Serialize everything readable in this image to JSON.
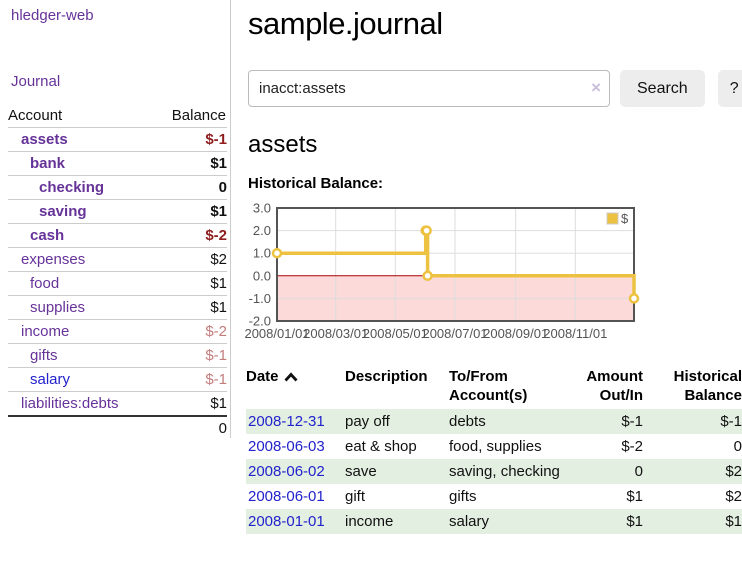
{
  "app": {
    "brand": "hledger-web",
    "nav_journal": "Journal"
  },
  "sidebar": {
    "col_account": "Account",
    "col_balance": "Balance",
    "accounts": [
      {
        "name": "assets",
        "depth": 1,
        "balance": "$-1",
        "strong": true,
        "balance_tone": "neg"
      },
      {
        "name": "bank",
        "depth": 2,
        "balance": "$1",
        "strong": true,
        "balance_tone": null
      },
      {
        "name": "checking",
        "depth": 3,
        "balance": "0",
        "strong": true,
        "balance_tone": null
      },
      {
        "name": "saving",
        "depth": 3,
        "balance": "$1",
        "strong": true,
        "balance_tone": null
      },
      {
        "name": "cash",
        "depth": 2,
        "balance": "$-2",
        "strong": true,
        "balance_tone": "neg"
      },
      {
        "name": "expenses",
        "depth": 1,
        "balance": "$2",
        "strong": false,
        "balance_tone": null
      },
      {
        "name": "food",
        "depth": 2,
        "balance": "$1",
        "strong": false,
        "balance_tone": null
      },
      {
        "name": "supplies",
        "depth": 2,
        "balance": "$1",
        "strong": false,
        "balance_tone": null
      },
      {
        "name": "income",
        "depth": 1,
        "balance": "$-2",
        "strong": false,
        "balance_tone": "neg-faded"
      },
      {
        "name": "gifts",
        "depth": 2,
        "balance": "$-1",
        "strong": false,
        "balance_tone": "neg-faded"
      },
      {
        "name": "salary",
        "depth": 2,
        "balance": "$-1",
        "strong": false,
        "balance_tone": "neg-faded",
        "link_tone": "blue"
      },
      {
        "name": "liabilities:debts",
        "depth": 1,
        "balance": "$1",
        "strong": false,
        "balance_tone": null
      }
    ],
    "total": "0"
  },
  "header": {
    "title": "sample.journal"
  },
  "search": {
    "query": "inacct:assets",
    "clear_icon": "×",
    "button_label": "Search",
    "help_label": "?"
  },
  "account_page": {
    "heading": "assets"
  },
  "chart_data": {
    "type": "line",
    "step": true,
    "title": "Historical Balance:",
    "series": [
      {
        "name": "$",
        "color": "#edc240",
        "points": [
          {
            "date": "2008-01-01",
            "day": 0,
            "value": 1
          },
          {
            "date": "2008-06-01",
            "day": 152,
            "value": 2
          },
          {
            "date": "2008-06-02",
            "day": 153,
            "value": 2
          },
          {
            "date": "2008-06-03",
            "day": 154,
            "value": 0
          },
          {
            "date": "2008-12-31",
            "day": 365,
            "value": -1
          }
        ]
      }
    ],
    "ylim": [
      -2,
      3
    ],
    "yticks": [
      3,
      2,
      1,
      0,
      -1,
      -2
    ],
    "ytick_labels": [
      "3.0",
      "2.0",
      "1.0",
      "0.0",
      "-1.0",
      "-2.0"
    ],
    "xticks": [
      {
        "day": 0,
        "label": "2008/01/01"
      },
      {
        "day": 60,
        "label": "2008/03/01"
      },
      {
        "day": 121,
        "label": "2008/05/01"
      },
      {
        "day": 182,
        "label": "2008/07/01"
      },
      {
        "day": 244,
        "label": "2008/09/01"
      },
      {
        "day": 305,
        "label": "2008/11/01"
      }
    ],
    "x_range_days": 365,
    "legend": {
      "label": "$",
      "position": "top-right"
    },
    "colors": {
      "negative_region": "#fcdada",
      "zero_line": "#aa0000",
      "grid": "#dddddd",
      "frame": "#545454"
    },
    "grid": true
  },
  "register": {
    "columns": [
      {
        "lines": [
          "Date"
        ],
        "sorted": "asc",
        "align": "left"
      },
      {
        "lines": [
          "Description"
        ],
        "align": "left"
      },
      {
        "lines": [
          "To/From",
          "Account(s)"
        ],
        "align": "left"
      },
      {
        "lines": [
          "Amount",
          "Out/In"
        ],
        "align": "right"
      },
      {
        "lines": [
          "Historical",
          "Balance"
        ],
        "align": "right"
      }
    ],
    "rows": [
      {
        "date": "2008-12-31",
        "description": "pay off",
        "accounts": "debts",
        "amount": "$-1",
        "balance": "$-1"
      },
      {
        "date": "2008-06-03",
        "description": "eat & shop",
        "accounts": "food, supplies",
        "amount": "$-2",
        "balance": "0"
      },
      {
        "date": "2008-06-02",
        "description": "save",
        "accounts": "saving, checking",
        "amount": "0",
        "balance": "$2"
      },
      {
        "date": "2008-06-01",
        "description": "gift",
        "accounts": "gifts",
        "amount": "$1",
        "balance": "$2"
      },
      {
        "date": "2008-01-01",
        "description": "income",
        "accounts": "salary",
        "amount": "$1",
        "balance": "$1"
      }
    ]
  }
}
